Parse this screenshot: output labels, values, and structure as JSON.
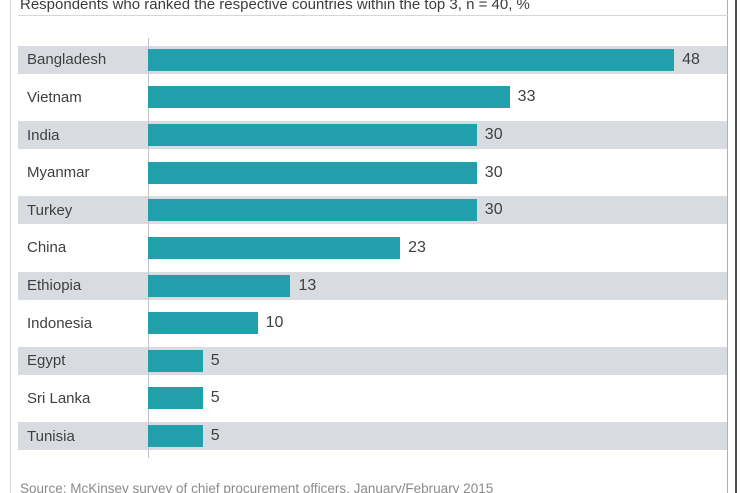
{
  "title": "Respondents who ranked the respective countries within the top 3, n = 40, %",
  "source": "Source: McKinsey survey of chief procurement officers, January/February 2015",
  "chart_data": {
    "type": "bar",
    "orientation": "horizontal",
    "categories": [
      "Bangladesh",
      "Vietnam",
      "India",
      "Myanmar",
      "Turkey",
      "China",
      "Ethiopia",
      "Indonesia",
      "Egypt",
      "Sri Lanka",
      "Tunisia"
    ],
    "values": [
      48,
      33,
      30,
      30,
      30,
      23,
      13,
      10,
      5,
      5,
      5
    ],
    "unit": "%",
    "xlim": [
      0,
      51
    ],
    "grid": false,
    "value_label_position": "end-of-bar",
    "row_striping": "alternate-starting-first",
    "colors": {
      "bar": "#219faa",
      "row_stripe": "#d8dce0",
      "axis_line": "#c2c5c8",
      "text": "#3f3f3f",
      "source_text": "#8a8a8a"
    }
  }
}
